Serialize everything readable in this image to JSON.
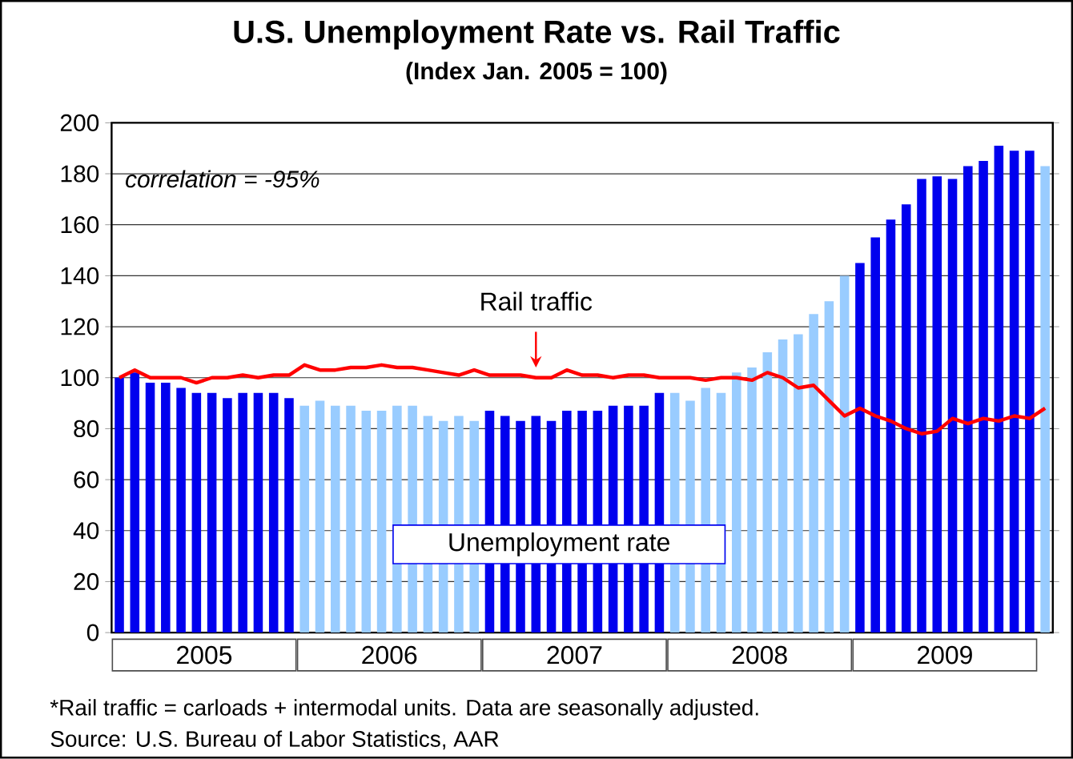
{
  "chart_data": {
    "type": "bar",
    "title": "U.S. Unemployment Rate vs. Rail Traffic",
    "subtitle": "(Index Jan. 2005 = 100)",
    "categories": [
      null,
      null,
      null,
      null,
      null,
      null,
      null,
      null,
      null,
      null,
      null,
      null,
      null,
      null,
      null,
      null,
      null,
      null,
      null,
      null,
      null,
      null,
      null,
      null,
      null,
      null,
      null,
      null,
      null,
      null,
      null,
      null,
      null,
      null,
      null,
      null,
      null,
      null,
      null,
      null,
      null,
      null,
      null,
      null,
      null,
      null,
      null,
      null,
      null,
      null,
      null,
      null,
      null,
      null,
      null,
      null,
      null,
      null,
      null,
      null,
      null
    ],
    "series": [
      {
        "name": "Unemployment rate",
        "color": "#0000ee",
        "colors": [
          "#0000ee",
          "#0000ee",
          "#0000ee",
          "#0000ee",
          "#0000ee",
          "#0000ee",
          "#0000ee",
          "#0000ee",
          "#0000ee",
          "#0000ee",
          "#0000ee",
          "#0000ee",
          "#99ccff",
          "#99ccff",
          "#99ccff",
          "#99ccff",
          "#99ccff",
          "#99ccff",
          "#99ccff",
          "#99ccff",
          "#99ccff",
          "#99ccff",
          "#99ccff",
          "#99ccff",
          "#0000ee",
          "#0000ee",
          "#0000ee",
          "#0000ee",
          "#0000ee",
          "#0000ee",
          "#0000ee",
          "#0000ee",
          "#0000ee",
          "#0000ee",
          "#0000ee",
          "#0000ee",
          "#99ccff",
          "#99ccff",
          "#99ccff",
          "#99ccff",
          "#99ccff",
          "#99ccff",
          "#99ccff",
          "#99ccff",
          "#99ccff",
          "#99ccff",
          "#99ccff",
          "#99ccff",
          "#0000ee",
          "#0000ee",
          "#0000ee",
          "#0000ee",
          "#0000ee",
          "#0000ee",
          "#0000ee",
          "#0000ee",
          "#0000ee",
          "#0000ee",
          "#0000ee",
          "#0000ee",
          "#99ccff"
        ],
        "values": [
          100,
          102,
          98,
          98,
          96,
          94,
          94,
          92,
          94,
          94,
          94,
          92,
          89,
          91,
          89,
          89,
          87,
          87,
          89,
          89,
          85,
          83,
          85,
          83,
          87,
          85,
          83,
          85,
          83,
          87,
          87,
          87,
          89,
          89,
          89,
          94,
          94,
          91,
          96,
          94,
          102,
          104,
          110,
          115,
          117,
          125,
          130,
          140,
          145,
          155,
          162,
          168,
          178,
          179,
          178,
          183,
          185,
          191,
          189,
          189,
          183
        ]
      },
      {
        "name": "Rail traffic",
        "type": "line",
        "color": "#ff0000",
        "values": [
          100,
          103,
          100,
          100,
          100,
          98,
          100,
          100,
          101,
          100,
          101,
          101,
          105,
          103,
          103,
          104,
          104,
          105,
          104,
          104,
          103,
          102,
          101,
          103,
          101,
          101,
          101,
          100,
          100,
          103,
          101,
          101,
          100,
          101,
          101,
          100,
          100,
          100,
          99,
          100,
          100,
          99,
          102,
          100,
          96,
          97,
          91,
          85,
          88,
          85,
          83,
          80,
          78,
          79,
          84,
          82,
          84,
          83,
          85,
          84,
          88
        ]
      }
    ],
    "ylim": [
      0,
      200
    ],
    "yticks": [
      0,
      20,
      40,
      60,
      80,
      100,
      120,
      140,
      160,
      180,
      200
    ],
    "grid": "y",
    "annotations": [
      "correlation = -95%",
      "2005",
      "2006",
      "2007",
      "2008",
      "2009",
      "*Rail traffic = carloads + intermodal units.  Data are seasonally adjusted.",
      "Source: U.S. Bureau of Labor Statistics, AAR"
    ]
  }
}
